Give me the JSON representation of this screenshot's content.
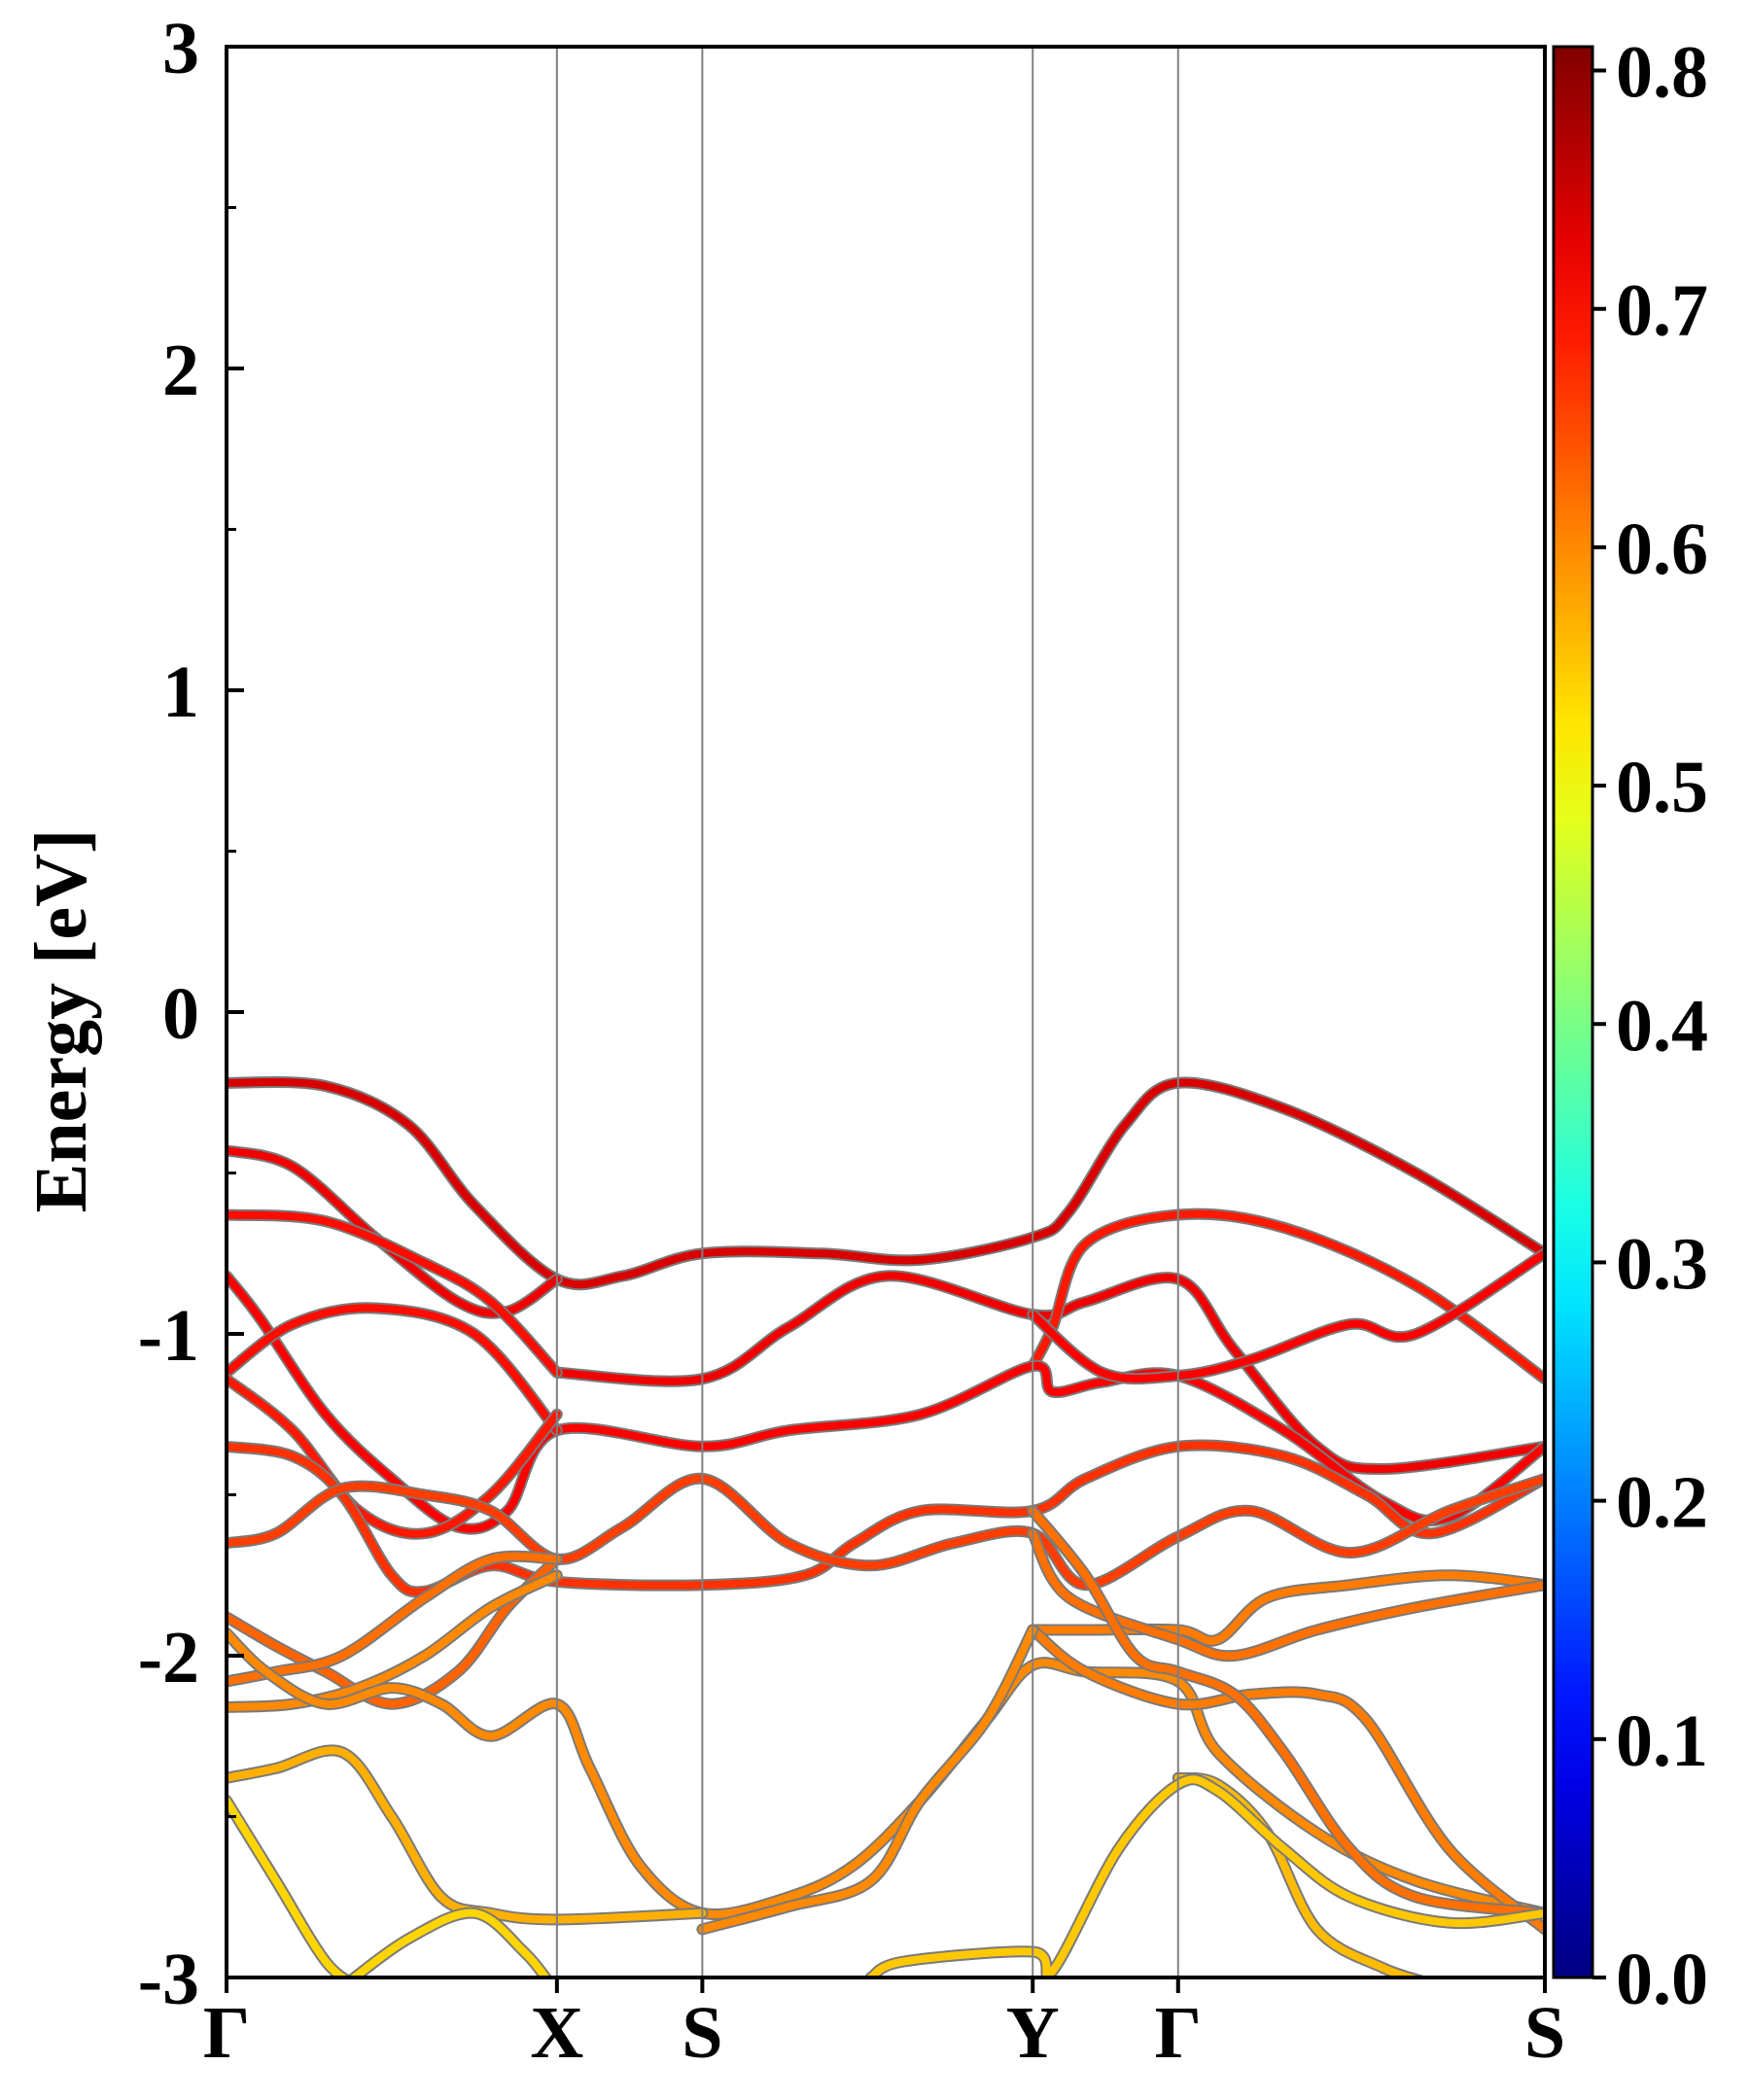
{
  "chart_data": {
    "type": "line",
    "title": "",
    "xlabel": "",
    "ylabel": "Energy [eV]",
    "ylim": [
      -3,
      3
    ],
    "yticks": [
      "-3",
      "-2",
      "-1",
      "0",
      "1",
      "2",
      "3"
    ],
    "kpath": [
      {
        "label": "Γ",
        "x": 0.0
      },
      {
        "label": "X",
        "x": 1.0
      },
      {
        "label": "S",
        "x": 1.44
      },
      {
        "label": "Y",
        "x": 2.44
      },
      {
        "label": "Γ",
        "x": 2.88
      },
      {
        "label": "S",
        "x": 3.99
      }
    ],
    "colorbar": {
      "min": 0.0,
      "max": 0.81,
      "ticks": [
        "0.0",
        "0.1",
        "0.2",
        "0.3",
        "0.4",
        "0.5",
        "0.6",
        "0.7",
        "0.8"
      ],
      "colormap": "jet"
    },
    "series": [
      {
        "weight": 0.74,
        "points": [
          [
            0.0,
            -0.22
          ],
          [
            0.3,
            -0.23
          ],
          [
            0.55,
            -0.35
          ],
          [
            0.75,
            -0.6
          ],
          [
            1.0,
            -0.83
          ],
          [
            1.2,
            -0.82
          ],
          [
            1.44,
            -0.75
          ],
          [
            1.8,
            -0.75
          ],
          [
            2.1,
            -0.77
          ],
          [
            2.44,
            -0.7
          ],
          [
            2.55,
            -0.62
          ],
          [
            2.72,
            -0.35
          ],
          [
            2.88,
            -0.22
          ],
          [
            3.2,
            -0.3
          ],
          [
            3.6,
            -0.5
          ],
          [
            3.99,
            -0.75
          ]
        ]
      },
      {
        "weight": 0.72,
        "points": [
          [
            0.0,
            -0.43
          ],
          [
            0.2,
            -0.48
          ],
          [
            0.45,
            -0.7
          ],
          [
            0.7,
            -0.9
          ],
          [
            0.85,
            -0.93
          ],
          [
            1.0,
            -0.83
          ]
        ]
      },
      {
        "weight": 0.72,
        "points": [
          [
            1.0,
            -1.12
          ],
          [
            1.44,
            -1.14
          ],
          [
            1.7,
            -0.98
          ],
          [
            2.0,
            -0.82
          ],
          [
            2.44,
            -0.94
          ],
          [
            2.6,
            -0.9
          ],
          [
            2.88,
            -0.83
          ],
          [
            3.05,
            -1.05
          ],
          [
            3.3,
            -1.35
          ],
          [
            3.5,
            -1.42
          ],
          [
            3.99,
            -1.35
          ]
        ]
      },
      {
        "weight": 0.7,
        "points": [
          [
            0.0,
            -0.63
          ],
          [
            0.3,
            -0.65
          ],
          [
            0.6,
            -0.78
          ],
          [
            0.8,
            -0.9
          ],
          [
            1.0,
            -1.12
          ]
        ]
      },
      {
        "weight": 0.69,
        "points": [
          [
            2.44,
            -1.1
          ],
          [
            2.5,
            -0.98
          ],
          [
            2.6,
            -0.72
          ],
          [
            2.88,
            -0.63
          ],
          [
            3.2,
            -0.67
          ],
          [
            3.6,
            -0.85
          ],
          [
            3.99,
            -1.14
          ]
        ]
      },
      {
        "weight": 0.71,
        "points": [
          [
            0.0,
            -0.82
          ],
          [
            0.1,
            -0.95
          ],
          [
            0.3,
            -1.25
          ],
          [
            0.5,
            -1.45
          ],
          [
            0.7,
            -1.6
          ],
          [
            0.85,
            -1.55
          ],
          [
            1.0,
            -1.3
          ],
          [
            1.44,
            -1.35
          ],
          [
            1.7,
            -1.3
          ],
          [
            2.1,
            -1.25
          ],
          [
            2.44,
            -1.1
          ],
          [
            2.5,
            -1.18
          ],
          [
            2.65,
            -1.15
          ],
          [
            2.88,
            -1.13
          ],
          [
            3.2,
            -1.3
          ],
          [
            3.5,
            -1.52
          ],
          [
            3.7,
            -1.57
          ],
          [
            3.99,
            -1.35
          ]
        ]
      },
      {
        "weight": 0.7,
        "points": [
          [
            0.0,
            -1.12
          ],
          [
            0.2,
            -0.97
          ],
          [
            0.45,
            -0.92
          ],
          [
            0.75,
            -1.0
          ],
          [
            1.0,
            -1.3
          ]
        ]
      },
      {
        "weight": 0.69,
        "points": [
          [
            0.0,
            -1.14
          ],
          [
            0.2,
            -1.3
          ],
          [
            0.4,
            -1.55
          ],
          [
            0.6,
            -1.62
          ],
          [
            0.8,
            -1.5
          ],
          [
            1.0,
            -1.25
          ]
        ]
      },
      {
        "weight": 0.71,
        "points": [
          [
            2.44,
            -0.94
          ],
          [
            2.65,
            -1.12
          ],
          [
            2.88,
            -1.13
          ],
          [
            3.1,
            -1.08
          ],
          [
            3.4,
            -0.97
          ],
          [
            3.6,
            -1.0
          ],
          [
            3.99,
            -0.75
          ]
        ]
      },
      {
        "weight": 0.67,
        "points": [
          [
            0.0,
            -1.35
          ],
          [
            0.2,
            -1.38
          ],
          [
            0.35,
            -1.5
          ],
          [
            0.5,
            -1.75
          ],
          [
            0.6,
            -1.8
          ],
          [
            0.8,
            -1.72
          ],
          [
            1.0,
            -1.77
          ],
          [
            1.44,
            -1.78
          ],
          [
            1.75,
            -1.75
          ],
          [
            1.9,
            -1.65
          ],
          [
            2.1,
            -1.55
          ],
          [
            2.44,
            -1.55
          ],
          [
            2.6,
            -1.45
          ],
          [
            2.88,
            -1.35
          ],
          [
            3.2,
            -1.38
          ],
          [
            3.45,
            -1.5
          ],
          [
            3.65,
            -1.62
          ],
          [
            3.99,
            -1.45
          ]
        ]
      },
      {
        "weight": 0.66,
        "points": [
          [
            0.0,
            -1.65
          ],
          [
            0.15,
            -1.62
          ],
          [
            0.35,
            -1.48
          ],
          [
            0.6,
            -1.5
          ],
          [
            0.8,
            -1.55
          ],
          [
            1.0,
            -1.7
          ],
          [
            1.2,
            -1.6
          ],
          [
            1.44,
            -1.45
          ],
          [
            1.7,
            -1.65
          ],
          [
            1.95,
            -1.72
          ],
          [
            2.2,
            -1.65
          ],
          [
            2.44,
            -1.62
          ],
          [
            2.6,
            -1.78
          ],
          [
            2.88,
            -1.63
          ],
          [
            3.1,
            -1.55
          ],
          [
            3.4,
            -1.68
          ],
          [
            3.7,
            -1.55
          ],
          [
            3.99,
            -1.45
          ]
        ]
      },
      {
        "weight": 0.63,
        "points": [
          [
            0.0,
            -1.88
          ],
          [
            0.15,
            -1.97
          ],
          [
            0.3,
            -2.05
          ],
          [
            0.5,
            -2.15
          ],
          [
            0.7,
            -2.05
          ],
          [
            0.85,
            -1.85
          ],
          [
            1.0,
            -1.7
          ]
        ]
      },
      {
        "weight": 0.62,
        "points": [
          [
            0.0,
            -2.08
          ],
          [
            0.15,
            -2.05
          ],
          [
            0.35,
            -2.0
          ],
          [
            0.6,
            -1.82
          ],
          [
            0.8,
            -1.7
          ],
          [
            1.0,
            -1.7
          ]
        ]
      },
      {
        "weight": 0.6,
        "points": [
          [
            0.0,
            -2.16
          ],
          [
            0.2,
            -2.15
          ],
          [
            0.4,
            -2.1
          ],
          [
            0.6,
            -2.0
          ],
          [
            0.8,
            -1.85
          ],
          [
            1.0,
            -1.75
          ]
        ]
      },
      {
        "weight": 0.6,
        "points": [
          [
            0.0,
            -1.93
          ],
          [
            0.12,
            -2.05
          ],
          [
            0.3,
            -2.15
          ],
          [
            0.5,
            -2.1
          ],
          [
            0.65,
            -2.15
          ],
          [
            0.8,
            -2.25
          ],
          [
            1.0,
            -2.15
          ],
          [
            1.1,
            -2.35
          ],
          [
            1.25,
            -2.65
          ],
          [
            1.44,
            -2.8
          ],
          [
            1.7,
            -2.75
          ],
          [
            1.9,
            -2.65
          ],
          [
            2.1,
            -2.45
          ],
          [
            2.3,
            -2.2
          ],
          [
            2.44,
            -2.03
          ],
          [
            2.6,
            -2.05
          ],
          [
            2.88,
            -2.08
          ],
          [
            3.0,
            -2.3
          ],
          [
            3.3,
            -2.55
          ],
          [
            3.6,
            -2.7
          ],
          [
            3.99,
            -2.8
          ]
        ]
      },
      {
        "weight": 0.61,
        "points": [
          [
            2.44,
            -1.92
          ],
          [
            2.6,
            -1.92
          ],
          [
            2.88,
            -1.92
          ],
          [
            3.0,
            -1.95
          ],
          [
            3.15,
            -1.82
          ],
          [
            3.4,
            -1.78
          ],
          [
            3.7,
            -1.75
          ],
          [
            3.99,
            -1.78
          ]
        ]
      },
      {
        "weight": 0.62,
        "points": [
          [
            2.44,
            -1.62
          ],
          [
            2.55,
            -1.82
          ],
          [
            2.88,
            -1.95
          ],
          [
            3.05,
            -2.0
          ],
          [
            3.3,
            -1.92
          ],
          [
            3.6,
            -1.85
          ],
          [
            3.99,
            -1.78
          ]
        ]
      },
      {
        "weight": 0.61,
        "points": [
          [
            2.44,
            -1.92
          ],
          [
            2.6,
            -2.05
          ],
          [
            2.88,
            -2.15
          ],
          [
            3.1,
            -2.12
          ],
          [
            3.3,
            -2.12
          ],
          [
            3.45,
            -2.2
          ],
          [
            3.7,
            -2.6
          ],
          [
            3.99,
            -2.85
          ]
        ]
      },
      {
        "weight": 0.62,
        "points": [
          [
            2.44,
            -1.55
          ],
          [
            2.6,
            -1.75
          ],
          [
            2.75,
            -2.0
          ],
          [
            2.88,
            -2.05
          ],
          [
            3.05,
            -2.12
          ],
          [
            3.2,
            -2.3
          ],
          [
            3.4,
            -2.6
          ],
          [
            3.6,
            -2.75
          ],
          [
            3.99,
            -2.8
          ]
        ]
      },
      {
        "weight": 0.6,
        "points": [
          [
            1.44,
            -2.85
          ],
          [
            1.7,
            -2.78
          ],
          [
            1.95,
            -2.7
          ],
          [
            2.1,
            -2.45
          ],
          [
            2.3,
            -2.2
          ],
          [
            2.44,
            -1.92
          ]
        ]
      },
      {
        "weight": 0.57,
        "points": [
          [
            0.0,
            -2.38
          ],
          [
            0.15,
            -2.35
          ],
          [
            0.35,
            -2.3
          ],
          [
            0.5,
            -2.5
          ],
          [
            0.65,
            -2.75
          ],
          [
            0.8,
            -2.8
          ],
          [
            1.0,
            -2.82
          ],
          [
            1.44,
            -2.8
          ]
        ]
      },
      {
        "weight": 0.56,
        "points": [
          [
            2.88,
            -2.38
          ],
          [
            3.0,
            -2.4
          ],
          [
            3.15,
            -2.55
          ],
          [
            3.3,
            -2.85
          ],
          [
            3.5,
            -2.97
          ],
          [
            3.65,
            -3.02
          ]
        ]
      },
      {
        "weight": 0.55,
        "points": [
          [
            1.95,
            -3.0
          ],
          [
            2.05,
            -2.95
          ],
          [
            2.44,
            -2.92
          ],
          [
            2.5,
            -2.98
          ],
          [
            2.7,
            -2.6
          ],
          [
            2.88,
            -2.4
          ],
          [
            3.0,
            -2.42
          ],
          [
            3.2,
            -2.6
          ],
          [
            3.4,
            -2.75
          ],
          [
            3.7,
            -2.83
          ],
          [
            3.99,
            -2.8
          ]
        ]
      },
      {
        "weight": 0.54,
        "points": [
          [
            0.0,
            -2.45
          ],
          [
            0.15,
            -2.7
          ],
          [
            0.3,
            -2.95
          ],
          [
            0.4,
            -3.03
          ]
        ]
      },
      {
        "weight": 0.54,
        "points": [
          [
            0.35,
            -3.03
          ],
          [
            0.55,
            -2.88
          ],
          [
            0.75,
            -2.8
          ],
          [
            0.9,
            -2.92
          ],
          [
            0.98,
            -3.02
          ]
        ]
      }
    ]
  }
}
